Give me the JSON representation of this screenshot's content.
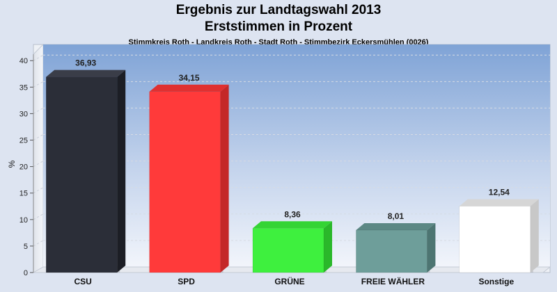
{
  "chart_data": {
    "type": "bar",
    "title": "Ergebnis zur Landtagswahl 2013",
    "subtitle": "Erststimmen in Prozent",
    "subsubtitle": "Stimmkreis Roth - Landkreis Roth - Stadt Roth - Stimmbezirk Eckersmühlen (0026)",
    "categories": [
      "CSU",
      "SPD",
      "GRÜNE",
      "FREIE WÄHLER",
      "Sonstige"
    ],
    "values": [
      36.93,
      34.15,
      8.36,
      8.01,
      12.54
    ],
    "value_labels": [
      "36,93",
      "34,15",
      "8,36",
      "8,01",
      "12,54"
    ],
    "colors": [
      "#2b2e38",
      "#ff3a3a",
      "#3ef03e",
      "#6e9e9a",
      "#ffffff"
    ],
    "side_colors": [
      "#1c1e25",
      "#c42828",
      "#2ab82a",
      "#4d7572",
      "#c8c8c8"
    ],
    "top_colors": [
      "#3a3d48",
      "#e03030",
      "#34d434",
      "#5c8884",
      "#d6d6d6"
    ],
    "ylabel": "%",
    "xlabel": "",
    "ylim": [
      0,
      42
    ],
    "yticks": [
      0,
      5,
      10,
      15,
      20,
      25,
      30,
      35,
      40
    ],
    "grid": true,
    "legend": "none"
  }
}
